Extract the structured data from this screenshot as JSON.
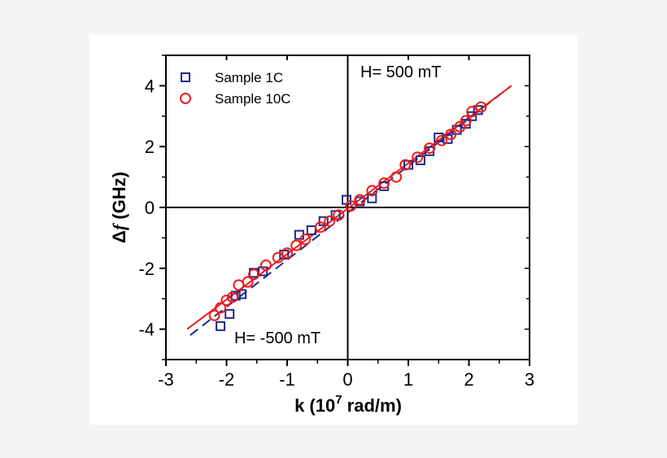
{
  "chart_data": {
    "type": "scatter",
    "xlabel": {
      "main": "k (10",
      "sup": "7",
      "rest": " rad/m)"
    },
    "ylabel": {
      "delta": "Δ",
      "f": "f",
      "rest": " (GHz)"
    },
    "xlim": [
      -3,
      3
    ],
    "ylim": [
      -5,
      5
    ],
    "xticks": [
      "-3",
      "-2",
      "-1",
      "0",
      "1",
      "2",
      "3"
    ],
    "yticks": [
      "-4",
      "-2",
      "0",
      "2",
      "4"
    ],
    "annotations": [
      "H= 500 mT",
      "H= -500 mT"
    ],
    "legend_position": "top-left",
    "colors": {
      "sample1c": "#1f2a8a",
      "sample10c": "#ee1c1c",
      "fit_blue": "#1f2a8a",
      "fit_red": "#ee1c1c"
    },
    "series": [
      {
        "name": "Sample 1C",
        "marker": "square",
        "points": [
          [
            -2.1,
            -3.9
          ],
          [
            -1.95,
            -3.5
          ],
          [
            -1.85,
            -2.9
          ],
          [
            -1.75,
            -2.85
          ],
          [
            -1.55,
            -2.15
          ],
          [
            -1.4,
            -2.1
          ],
          [
            -1.05,
            -1.55
          ],
          [
            -0.8,
            -0.9
          ],
          [
            -0.6,
            -0.75
          ],
          [
            -0.4,
            -0.45
          ],
          [
            -0.2,
            -0.25
          ],
          [
            -0.02,
            0.25
          ],
          [
            0.2,
            0.2
          ],
          [
            0.4,
            0.3
          ],
          [
            0.6,
            0.7
          ],
          [
            1.0,
            1.4
          ],
          [
            1.2,
            1.55
          ],
          [
            1.35,
            1.85
          ],
          [
            1.5,
            2.3
          ],
          [
            1.65,
            2.25
          ],
          [
            1.8,
            2.55
          ],
          [
            1.95,
            2.75
          ],
          [
            2.05,
            3.0
          ],
          [
            2.15,
            3.2
          ]
        ]
      },
      {
        "name": "Sample 10C",
        "marker": "circle",
        "points": [
          [
            -2.2,
            -3.55
          ],
          [
            -2.1,
            -3.3
          ],
          [
            -2.0,
            -3.05
          ],
          [
            -1.9,
            -2.95
          ],
          [
            -1.8,
            -2.55
          ],
          [
            -1.65,
            -2.45
          ],
          [
            -1.55,
            -2.2
          ],
          [
            -1.35,
            -1.9
          ],
          [
            -1.15,
            -1.65
          ],
          [
            -1.0,
            -1.5
          ],
          [
            -0.85,
            -1.25
          ],
          [
            -0.7,
            -1.05
          ],
          [
            -0.45,
            -0.65
          ],
          [
            -0.3,
            -0.45
          ],
          [
            -0.15,
            -0.25
          ],
          [
            0.05,
            0.05
          ],
          [
            0.2,
            0.25
          ],
          [
            0.4,
            0.55
          ],
          [
            0.6,
            0.8
          ],
          [
            0.8,
            1.0
          ],
          [
            0.95,
            1.4
          ],
          [
            1.15,
            1.65
          ],
          [
            1.35,
            1.95
          ],
          [
            1.55,
            2.2
          ],
          [
            1.7,
            2.4
          ],
          [
            1.85,
            2.65
          ],
          [
            1.95,
            2.85
          ],
          [
            2.05,
            3.15
          ],
          [
            2.2,
            3.3
          ]
        ]
      }
    ],
    "fit_lines": [
      {
        "series": "Sample 1C",
        "style": "dashed",
        "points": [
          [
            -2.6,
            -4.2
          ],
          [
            2.7,
            4.0
          ]
        ]
      },
      {
        "series": "Sample 10C",
        "style": "solid",
        "points": [
          [
            -2.65,
            -4.0
          ],
          [
            2.7,
            4.0
          ]
        ]
      }
    ]
  }
}
